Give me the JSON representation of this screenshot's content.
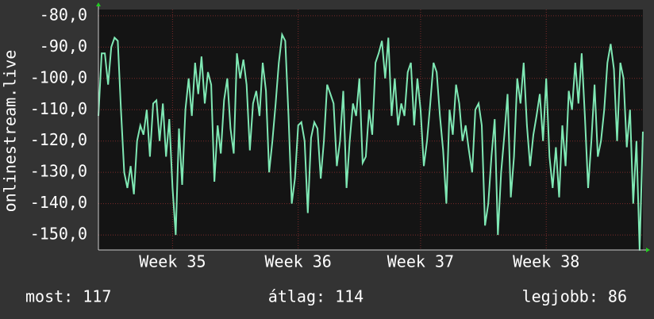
{
  "chart_data": {
    "type": "line",
    "y_label": "onlinestream.live",
    "categories": [
      null,
      null,
      null,
      null,
      null,
      null,
      null,
      null,
      null,
      null,
      null,
      null,
      null,
      null,
      null,
      null,
      null,
      null,
      null,
      null,
      null,
      null,
      null,
      "Week 35",
      null,
      null,
      null,
      null,
      null,
      null,
      null,
      null,
      null,
      null,
      null,
      null,
      null,
      null,
      null,
      null,
      null,
      null,
      null,
      null,
      null,
      null,
      null,
      null,
      null,
      null,
      null,
      null,
      null,
      null,
      null,
      null,
      null,
      null,
      null,
      null,
      null,
      null,
      "Week 36",
      null,
      null,
      null,
      null,
      null,
      null,
      null,
      null,
      null,
      null,
      null,
      null,
      null,
      null,
      null,
      null,
      null,
      null,
      null,
      null,
      null,
      null,
      null,
      null,
      null,
      null,
      null,
      null,
      null,
      null,
      null,
      null,
      null,
      null,
      null,
      null,
      null,
      "Week 37",
      null,
      null,
      null,
      null,
      null,
      null,
      null,
      null,
      null,
      null,
      null,
      null,
      null,
      null,
      null,
      null,
      null,
      null,
      null,
      null,
      null,
      null,
      null,
      null,
      null,
      null,
      null,
      null,
      null,
      null,
      null,
      null,
      null,
      null,
      null,
      null,
      null,
      null,
      "Week 38",
      null,
      null,
      null,
      null,
      null,
      null,
      null,
      null,
      null,
      null,
      null,
      null,
      null,
      null,
      null,
      null,
      null,
      null,
      null,
      null,
      null,
      null,
      null,
      null,
      null,
      null,
      null,
      null,
      null,
      null
    ],
    "series": [
      {
        "name": "onlinestream.live",
        "color": "#7fe8b4",
        "values": [
          -112,
          -92,
          -92,
          -102,
          -90,
          -87,
          -88,
          -110,
          -130,
          -135,
          -128,
          -137,
          -120,
          -115,
          -118,
          -110,
          -125,
          -108,
          -107,
          -120,
          -108,
          -125,
          -113,
          -135,
          -150,
          -116,
          -134,
          -110,
          -100,
          -112,
          -95,
          -105,
          -93,
          -108,
          -98,
          -102,
          -133,
          -115,
          -124,
          -107,
          -100,
          -116,
          -124,
          -92,
          -100,
          -94,
          -102,
          -123,
          -108,
          -104,
          -112,
          -95,
          -104,
          -130,
          -120,
          -108,
          -95,
          -86,
          -88,
          -112,
          -140,
          -132,
          -115,
          -114,
          -120,
          -143,
          -119,
          -114,
          -116,
          -132,
          -120,
          -102,
          -105,
          -108,
          -128,
          -120,
          -104,
          -135,
          -120,
          -108,
          -112,
          -100,
          -127,
          -125,
          -110,
          -118,
          -95,
          -92,
          -88,
          -100,
          -87,
          -112,
          -100,
          -115,
          -108,
          -112,
          -98,
          -95,
          -115,
          -100,
          -110,
          -128,
          -120,
          -108,
          -95,
          -98,
          -112,
          -123,
          -140,
          -110,
          -118,
          -102,
          -108,
          -120,
          -115,
          -123,
          -130,
          -110,
          -108,
          -115,
          -147,
          -140,
          -125,
          -113,
          -150,
          -130,
          -118,
          -105,
          -138,
          -125,
          -100,
          -108,
          -95,
          -115,
          -128,
          -118,
          -112,
          -105,
          -120,
          -100,
          -125,
          -135,
          -122,
          -138,
          -115,
          -128,
          -104,
          -110,
          -95,
          -108,
          -92,
          -112,
          -135,
          -120,
          -102,
          -125,
          -120,
          -110,
          -95,
          -89,
          -97,
          -120,
          -95,
          -100,
          -122,
          -110,
          -140,
          -120,
          -155,
          -117
        ]
      }
    ],
    "ylim": [
      -154.8,
      -78
    ],
    "yticks": [
      {
        "value": -150,
        "label": "-150,0"
      },
      {
        "value": -140,
        "label": "-140,0"
      },
      {
        "value": -130,
        "label": "-130,0"
      },
      {
        "value": -120,
        "label": "-120,0"
      },
      {
        "value": -110,
        "label": "-110,0"
      },
      {
        "value": -100,
        "label": "-100,0"
      },
      {
        "value": -90,
        "label": "-90,0"
      },
      {
        "value": -80,
        "label": "-80,0"
      }
    ],
    "grid": true,
    "footer": [
      "most: 117",
      "átlag: 114",
      "legjobb: 86"
    ]
  }
}
